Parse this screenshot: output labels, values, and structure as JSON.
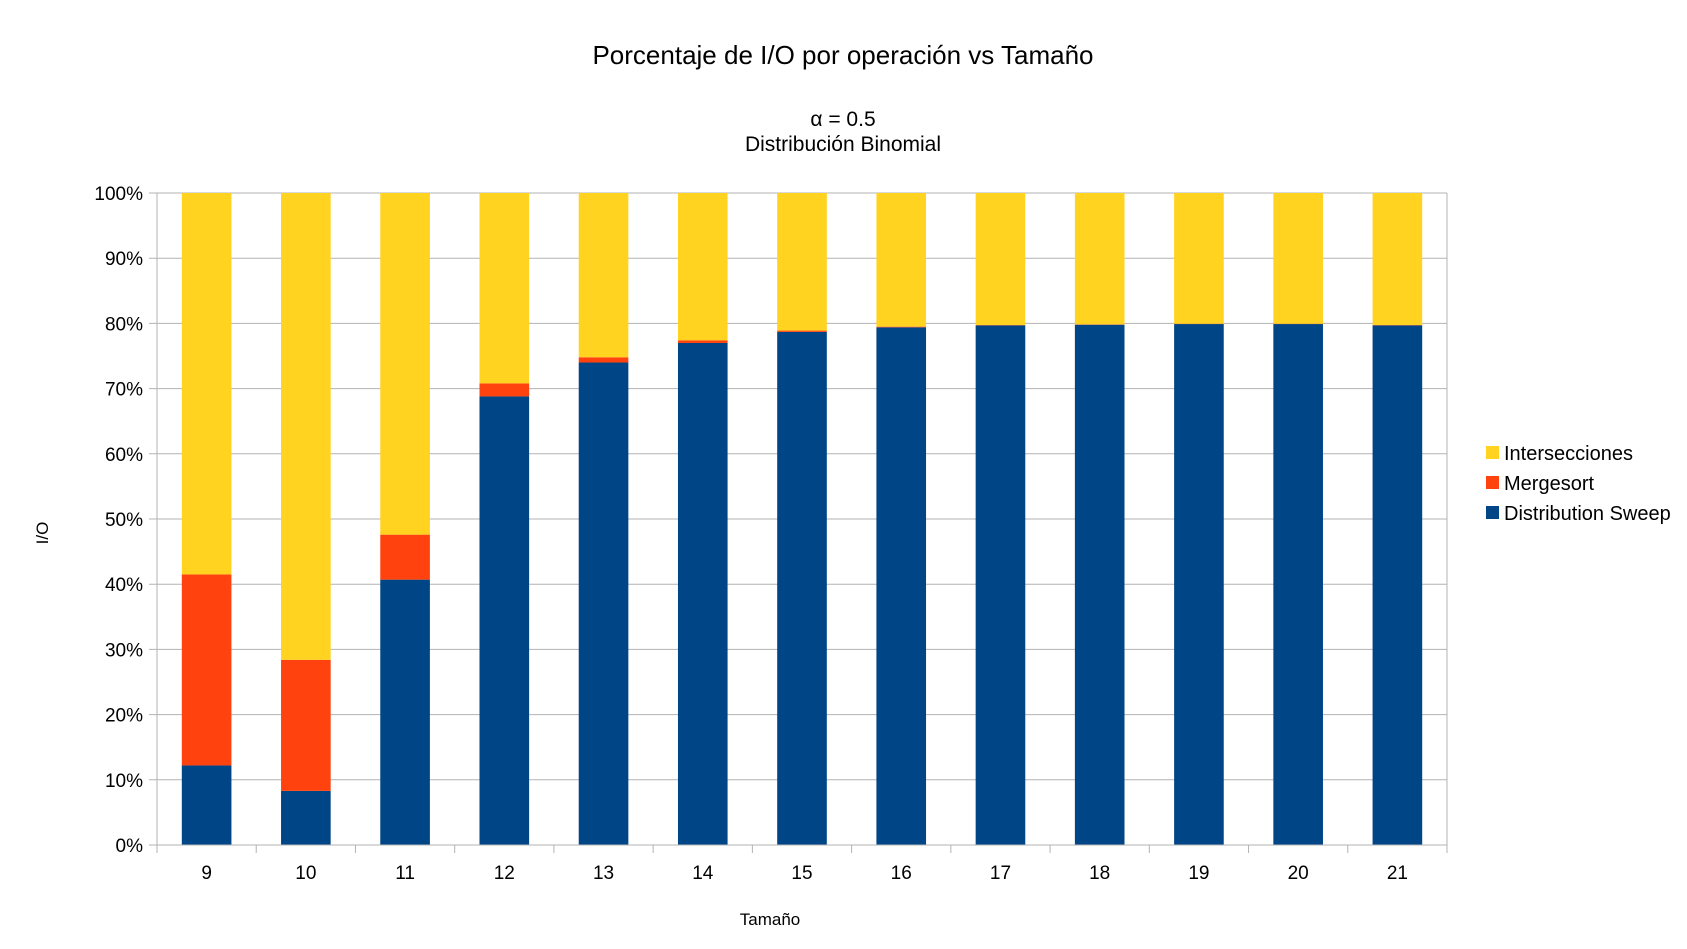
{
  "chart_data": {
    "type": "bar",
    "stacked": true,
    "title": "Porcentaje de I/O por operación vs Tamaño",
    "subtitle_lines": [
      "α = 0.5",
      "Distribución Binomial"
    ],
    "xlabel": "Tamaño",
    "ylabel": "I/O",
    "ylim": [
      0,
      100
    ],
    "y_ticks": [
      0,
      10,
      20,
      30,
      40,
      50,
      60,
      70,
      80,
      90,
      100
    ],
    "y_tick_suffix": "%",
    "grid": true,
    "legend_position": "right",
    "categories": [
      "9",
      "10",
      "11",
      "12",
      "13",
      "14",
      "15",
      "16",
      "17",
      "18",
      "19",
      "20",
      "21"
    ],
    "series": [
      {
        "name": "Distribution Sweep",
        "color": "#004586",
        "values": [
          12.2,
          8.3,
          40.7,
          68.8,
          74.0,
          77.0,
          78.7,
          79.4,
          79.7,
          79.8,
          79.9,
          79.9,
          79.7
        ]
      },
      {
        "name": "Mergesort",
        "color": "#ff420e",
        "values": [
          29.3,
          20.1,
          6.9,
          2.0,
          0.8,
          0.4,
          0.2,
          0.1,
          0.05,
          0.05,
          0.05,
          0.05,
          0.05
        ]
      },
      {
        "name": "Intersecciones",
        "color": "#ffd320",
        "values": [
          58.5,
          71.6,
          52.4,
          29.2,
          25.2,
          22.6,
          21.1,
          20.5,
          20.25,
          20.15,
          20.05,
          20.05,
          20.25
        ]
      }
    ],
    "legend_order": [
      "Intersecciones",
      "Mergesort",
      "Distribution Sweep"
    ]
  }
}
